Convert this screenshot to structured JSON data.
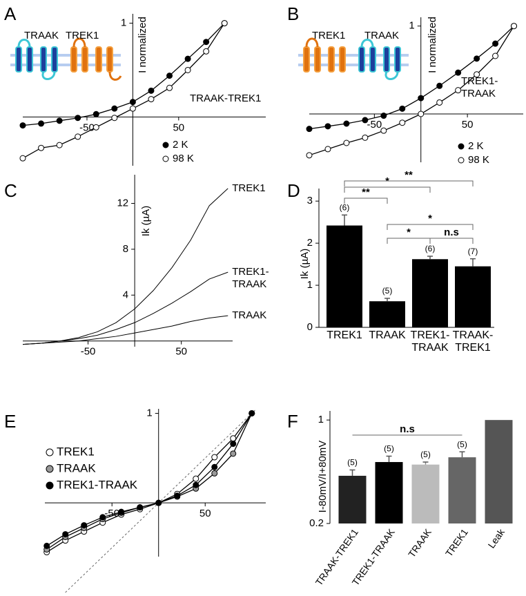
{
  "chart_data": [
    {
      "type": "line",
      "panel": "A",
      "ylabel": "I normalized",
      "annotation": "TRAAK-TREK1",
      "schematic_labels": [
        "TRAAK",
        "TREK1"
      ],
      "x": [
        -120,
        -100,
        -80,
        -60,
        -40,
        -20,
        0,
        20,
        40,
        60,
        80,
        100
      ],
      "series": [
        {
          "name": "2 K",
          "color": "#000000",
          "values": [
            -0.09,
            -0.07,
            -0.04,
            -0.01,
            0.03,
            0.09,
            0.16,
            0.28,
            0.44,
            0.62,
            0.8,
            1.0
          ]
        },
        {
          "name": "98 K",
          "color": "#ffffff",
          "values": [
            -0.44,
            -0.33,
            -0.3,
            -0.21,
            -0.11,
            -0.01,
            0.09,
            0.19,
            0.31,
            0.5,
            0.7,
            1.0
          ]
        }
      ],
      "xlim": [
        -120,
        145
      ],
      "ylim": [
        -0.52,
        1.1
      ],
      "xticks": [
        -50,
        50
      ],
      "yticks": [
        1
      ],
      "markers": true
    },
    {
      "type": "line",
      "panel": "B",
      "ylabel": "I normalized",
      "annotation": "TREK1-TRAAK",
      "schematic_labels": [
        "TREK1",
        "TRAAK"
      ],
      "x": [
        -120,
        -100,
        -80,
        -60,
        -40,
        -20,
        0,
        20,
        40,
        60,
        80,
        100
      ],
      "series": [
        {
          "name": "2 K",
          "color": "#000000",
          "values": [
            -0.17,
            -0.14,
            -0.11,
            -0.07,
            -0.02,
            0.06,
            0.18,
            0.32,
            0.47,
            0.63,
            0.8,
            1.0
          ]
        },
        {
          "name": "98 K",
          "color": "#ffffff",
          "values": [
            -0.47,
            -0.4,
            -0.33,
            -0.27,
            -0.19,
            -0.1,
            0,
            0.13,
            0.27,
            0.45,
            0.66,
            1.0
          ]
        }
      ],
      "xlim": [
        -120,
        110
      ],
      "ylim": [
        -0.55,
        1.1
      ],
      "xticks": [
        -50,
        50
      ],
      "yticks": [
        1
      ],
      "markers": true
    },
    {
      "type": "line",
      "panel": "C",
      "ylabel": "Ik (µA)",
      "x": [
        -120,
        -100,
        -80,
        -60,
        -40,
        -20,
        0,
        20,
        40,
        60,
        80,
        100
      ],
      "series": [
        {
          "name": "TREK1",
          "color": "#000000",
          "values": [
            -0.3,
            -0.2,
            0,
            0.3,
            0.8,
            1.6,
            2.8,
            4.4,
            6.4,
            8.8,
            11.8,
            13.3
          ]
        },
        {
          "name": "TREK1-TRAAK",
          "color": "#000000",
          "values": [
            -0.3,
            -0.2,
            0,
            0.2,
            0.5,
            1.0,
            1.6,
            2.4,
            3.3,
            4.3,
            5.4,
            6.0
          ]
        },
        {
          "name": "TRAAK",
          "color": "#000000",
          "values": [
            -0.3,
            -0.2,
            -0.1,
            0,
            0.2,
            0.4,
            0.7,
            1.0,
            1.3,
            1.7,
            2.0,
            2.2
          ]
        }
      ],
      "xlim": [
        -120,
        105
      ],
      "ylim": [
        -0.5,
        14.5
      ],
      "xticks": [
        -50,
        50
      ],
      "yticks": [
        4,
        8,
        12
      ],
      "markers": false
    },
    {
      "type": "bar",
      "panel": "D",
      "ylabel": "Ik (µA)",
      "categories": [
        "TREK1",
        "TRAAK",
        "TREK1-TRAAK",
        "TRAAK-TREK1"
      ],
      "values": [
        2.42,
        0.62,
        1.62,
        1.45
      ],
      "errors": [
        0.25,
        0.07,
        0.07,
        0.18
      ],
      "n_labels": [
        "(6)",
        "(5)",
        "(6)",
        "(7)"
      ],
      "colors": [
        "#000000",
        "#000000",
        "#000000",
        "#000000"
      ],
      "significance": [
        "**",
        "*",
        "**",
        "*",
        "*",
        "n.s"
      ],
      "ylim": [
        0,
        3.2
      ],
      "yticks": [
        0,
        1,
        2,
        3
      ]
    },
    {
      "type": "line",
      "panel": "E",
      "x": [
        -120,
        -100,
        -80,
        -60,
        -40,
        -20,
        0,
        20,
        40,
        60,
        80,
        100
      ],
      "series": [
        {
          "name": "TREK1",
          "color": "#ffffff",
          "values": [
            -0.55,
            -0.42,
            -0.32,
            -0.22,
            -0.13,
            -0.07,
            0,
            0.1,
            0.27,
            0.51,
            0.72,
            1.0
          ]
        },
        {
          "name": "TRAAK",
          "color": "#999999",
          "values": [
            -0.52,
            -0.38,
            -0.28,
            -0.18,
            -0.11,
            -0.05,
            0,
            0.07,
            0.16,
            0.33,
            0.55,
            1.0
          ]
        },
        {
          "name": "TREK1-TRAAK",
          "color": "#000000",
          "values": [
            -0.48,
            -0.35,
            -0.25,
            -0.16,
            -0.1,
            -0.05,
            0,
            0.08,
            0.2,
            0.4,
            0.66,
            1.0
          ]
        }
      ],
      "xlim": [
        -122,
        115
      ],
      "ylim": [
        -0.6,
        1.05
      ],
      "xticks": [
        -50,
        50
      ],
      "yticks": [
        1
      ],
      "markers": true,
      "reference_line": true
    },
    {
      "type": "bar",
      "panel": "F",
      "ylabel": "I-80mV/I+80mV",
      "log_scale": true,
      "categories": [
        "TRAAK-TREK1",
        "TREK1-TRAAK",
        "TRAAK",
        "TREK1",
        "Leak"
      ],
      "values": [
        0.42,
        0.52,
        0.5,
        0.56,
        1.0
      ],
      "errors": [
        0.04,
        0.05,
        0.02,
        0.05,
        null
      ],
      "n_labels": [
        "(5)",
        "(5)",
        "(5)",
        "(5)",
        null
      ],
      "colors": [
        "#222222",
        "#000000",
        "#bbbbbb",
        "#666666",
        "#555555"
      ],
      "significance": [
        "n.s"
      ],
      "ylim": [
        0.2,
        1.08
      ],
      "yticks": [
        0.2,
        1
      ]
    }
  ]
}
